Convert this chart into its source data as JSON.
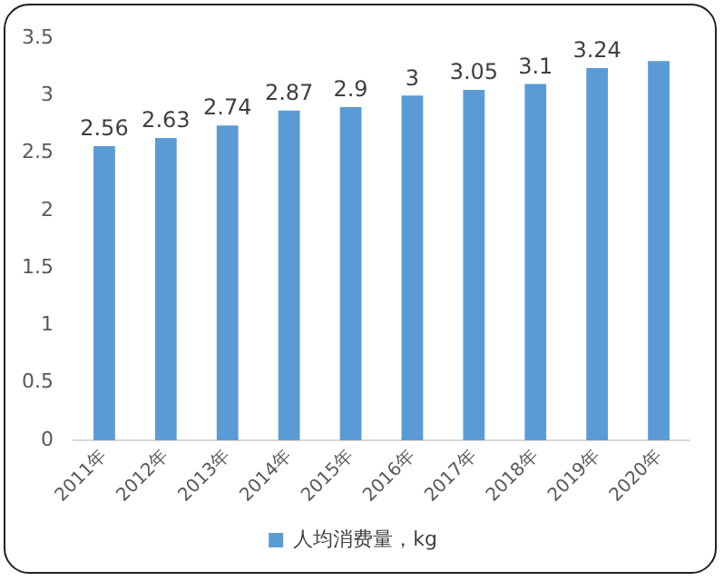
{
  "chart_data": {
    "type": "bar",
    "categories": [
      "2011年",
      "2012年",
      "2013年",
      "2014年",
      "2015年",
      "2016年",
      "2017年",
      "2018年",
      "2019年",
      "2020年"
    ],
    "series": [
      {
        "name": "人均消费量，kg",
        "color": "#5b9bd5",
        "values": [
          2.56,
          2.63,
          2.74,
          2.87,
          2.9,
          3,
          3.05,
          3.1,
          3.24,
          3.3
        ],
        "value_labels": [
          "2.56",
          "2.63",
          "2.74",
          "2.87",
          "2.9",
          "3",
          "3.05",
          "3.1",
          "3.24",
          null
        ]
      }
    ],
    "ylim": [
      0,
      3.5
    ],
    "yticks": [
      0,
      0.5,
      1,
      1.5,
      2,
      2.5,
      3,
      3.5
    ],
    "legend": "bottom"
  }
}
